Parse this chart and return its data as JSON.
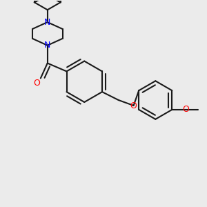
{
  "bg_color": "#ebebeb",
  "bond_color": "#1a1a1a",
  "nitrogen_color": "#0000ff",
  "oxygen_color": "#ff0000",
  "lw": 1.5,
  "figsize": [
    3.0,
    3.0
  ],
  "dpi": 100,
  "xlim": [
    0,
    300
  ],
  "ylim": [
    0,
    300
  ]
}
